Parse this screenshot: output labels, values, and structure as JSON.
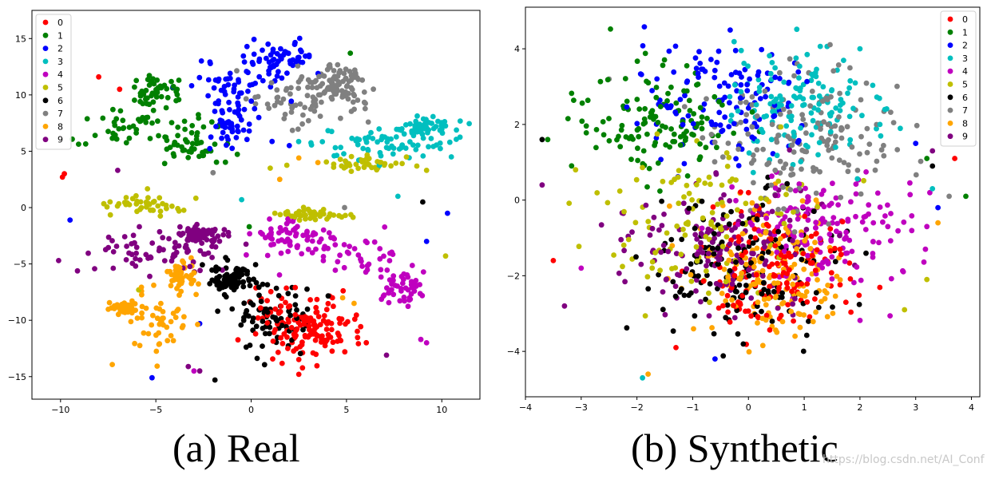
{
  "chart_data": [
    {
      "type": "scatter",
      "title": "",
      "caption": "(a) Real",
      "xlabel": "",
      "ylabel": "",
      "xlim": [
        -11.5,
        12.0
      ],
      "ylim": [
        -17.0,
        17.5
      ],
      "xticks": [
        -10,
        -5,
        0,
        5,
        10
      ],
      "yticks": [
        -15,
        -10,
        -5,
        0,
        5,
        10,
        15
      ],
      "legend": {
        "placement": "upper-left",
        "entries": [
          "0",
          "1",
          "2",
          "3",
          "4",
          "5",
          "6",
          "7",
          "8",
          "9"
        ]
      },
      "clusters": [
        {
          "label": "0",
          "n": 150,
          "centers": [
            [
              2.3,
              -9.8,
              1.5,
              1.8
            ],
            [
              3.5,
              -11.5,
              1.4,
              1.2
            ]
          ],
          "outliers": [
            [
              -9.8,
              3.0
            ],
            [
              -9.9,
              2.7
            ],
            [
              -8.0,
              11.6
            ],
            [
              -6.9,
              10.5
            ],
            [
              2.5,
              -14.8
            ]
          ]
        },
        {
          "label": "1",
          "n": 140,
          "centers": [
            [
              -6.5,
              7.3,
              1.8,
              1.2
            ],
            [
              -3.2,
              5.5,
              1.0,
              1.3
            ],
            [
              -5.0,
              10.2,
              0.8,
              0.8
            ]
          ],
          "outliers": [
            [
              5.2,
              13.7
            ],
            [
              -0.1,
              -1.7
            ],
            [
              -2.4,
              5.0
            ]
          ]
        },
        {
          "label": "2",
          "n": 150,
          "centers": [
            [
              -0.5,
              11.5,
              1.5,
              1.7
            ],
            [
              1.8,
              13.3,
              1.2,
              1.0
            ],
            [
              -0.9,
              7.3,
              0.8,
              1.3
            ]
          ],
          "outliers": [
            [
              -9.5,
              -1.1
            ],
            [
              -5.2,
              -15.1
            ],
            [
              2.0,
              5.5
            ],
            [
              10.3,
              -0.5
            ],
            [
              9.2,
              -3.0
            ],
            [
              -2.7,
              -10.3
            ]
          ]
        },
        {
          "label": "3",
          "n": 120,
          "centers": [
            [
              6.8,
              5.6,
              2.2,
              0.9
            ],
            [
              9.0,
              7.0,
              1.2,
              0.6
            ]
          ],
          "outliers": [
            [
              -0.5,
              0.7
            ],
            [
              7.7,
              1.0
            ],
            [
              10.5,
              4.5
            ]
          ]
        },
        {
          "label": "4",
          "n": 150,
          "centers": [
            [
              4.5,
              -4.0,
              2.6,
              1.2
            ],
            [
              2.0,
              -2.5,
              1.2,
              0.9
            ],
            [
              8.0,
              -7.0,
              0.8,
              1.1
            ]
          ],
          "outliers": [
            [
              8.9,
              -11.7
            ],
            [
              -3.0,
              -14.5
            ],
            [
              9.2,
              -12.0
            ]
          ]
        },
        {
          "label": "5",
          "n": 130,
          "centers": [
            [
              -5.5,
              0.2,
              1.6,
              0.6
            ],
            [
              3.5,
              -0.6,
              1.3,
              0.3
            ],
            [
              6.0,
              3.9,
              1.8,
              0.4
            ]
          ],
          "outliers": [
            [
              -5.9,
              -7.3
            ],
            [
              1.0,
              3.5
            ],
            [
              9.2,
              3.3
            ],
            [
              10.2,
              -4.3
            ]
          ]
        },
        {
          "label": "6",
          "n": 150,
          "centers": [
            [
              1.2,
              -10.0,
              1.3,
              2.0
            ],
            [
              -0.9,
              -6.4,
              0.8,
              1.0
            ]
          ],
          "outliers": [
            [
              9.0,
              0.5
            ],
            [
              -1.9,
              -15.3
            ]
          ]
        },
        {
          "label": "7",
          "n": 150,
          "centers": [
            [
              2.7,
              9.8,
              1.9,
              1.7
            ],
            [
              4.5,
              11.0,
              1.0,
              1.0
            ]
          ],
          "outliers": [
            [
              -2.0,
              3.1
            ],
            [
              4.9,
              0.0
            ]
          ]
        },
        {
          "label": "8",
          "n": 140,
          "centers": [
            [
              -4.8,
              -10.2,
              1.1,
              1.9
            ],
            [
              -6.6,
              -8.9,
              0.6,
              0.4
            ],
            [
              -3.6,
              -6.1,
              0.5,
              0.8
            ]
          ],
          "outliers": [
            [
              1.5,
              2.5
            ],
            [
              2.5,
              4.4
            ],
            [
              4.8,
              -8.0
            ],
            [
              5.4,
              -8.5
            ],
            [
              3.5,
              4.0
            ]
          ]
        },
        {
          "label": "9",
          "n": 140,
          "centers": [
            [
              -5.0,
              -3.9,
              2.2,
              1.0
            ],
            [
              -2.8,
              -2.4,
              0.8,
              0.5
            ]
          ],
          "outliers": [
            [
              -7.0,
              3.3
            ],
            [
              -10.1,
              -4.7
            ],
            [
              -2.7,
              -14.5
            ],
            [
              -3.3,
              -14.1
            ],
            [
              7.1,
              -13.1
            ]
          ]
        }
      ]
    },
    {
      "type": "scatter",
      "title": "",
      "caption": "(b) Synthetic",
      "xlabel": "",
      "ylabel": "",
      "xlim": [
        -4.0,
        4.15
      ],
      "ylim": [
        -5.2,
        5.1
      ],
      "xticks": [
        -4,
        -3,
        -2,
        -1,
        0,
        1,
        2,
        3,
        4
      ],
      "yticks": [
        -4,
        -2,
        0,
        2,
        4
      ],
      "legend": {
        "placement": "upper-right",
        "entries": [
          "0",
          "1",
          "2",
          "3",
          "4",
          "5",
          "6",
          "7",
          "8",
          "9"
        ]
      },
      "clusters": [
        {
          "label": "0",
          "n": 150,
          "centers": [
            [
              0.5,
              -1.9,
              0.85,
              1.0
            ]
          ],
          "outliers": [
            [
              3.7,
              1.1
            ],
            [
              -3.5,
              -1.6
            ],
            [
              -1.3,
              -3.9
            ]
          ]
        },
        {
          "label": "1",
          "n": 130,
          "centers": [
            [
              -1.6,
              2.1,
              0.9,
              0.95
            ]
          ],
          "outliers": [
            [
              -3.6,
              1.6
            ],
            [
              3.2,
              1.1
            ],
            [
              3.9,
              0.1
            ]
          ]
        },
        {
          "label": "2",
          "n": 130,
          "centers": [
            [
              -0.5,
              2.7,
              1.0,
              1.0
            ]
          ],
          "outliers": [
            [
              3.0,
              1.5
            ],
            [
              3.4,
              -0.2
            ],
            [
              -0.6,
              -4.2
            ]
          ]
        },
        {
          "label": "3",
          "n": 140,
          "centers": [
            [
              0.9,
              2.6,
              0.8,
              1.0
            ]
          ],
          "outliers": [
            [
              2.0,
              4.0
            ],
            [
              -1.9,
              -4.7
            ],
            [
              3.3,
              0.3
            ]
          ]
        },
        {
          "label": "4",
          "n": 160,
          "centers": [
            [
              1.4,
              -0.8,
              1.0,
              0.9
            ]
          ],
          "outliers": [
            [
              -3.0,
              -1.8
            ],
            [
              3.2,
              -0.7
            ]
          ]
        },
        {
          "label": "5",
          "n": 120,
          "centers": [
            [
              -0.7,
              -0.8,
              1.1,
              1.2
            ]
          ],
          "outliers": [
            [
              2.8,
              -2.9
            ],
            [
              3.2,
              -2.1
            ],
            [
              -3.1,
              0.8
            ]
          ]
        },
        {
          "label": "6",
          "n": 160,
          "centers": [
            [
              0.0,
              -1.8,
              1.0,
              1.1
            ]
          ],
          "outliers": [
            [
              -3.7,
              1.6
            ],
            [
              3.3,
              0.9
            ]
          ]
        },
        {
          "label": "7",
          "n": 160,
          "centers": [
            [
              1.0,
              1.7,
              1.0,
              1.1
            ]
          ],
          "outliers": [
            [
              -2.5,
              3.2
            ],
            [
              3.6,
              0.1
            ]
          ]
        },
        {
          "label": "8",
          "n": 170,
          "centers": [
            [
              0.4,
              -1.8,
              0.75,
              1.05
            ]
          ],
          "outliers": [
            [
              3.4,
              -0.6
            ],
            [
              -1.8,
              -4.6
            ]
          ]
        },
        {
          "label": "9",
          "n": 160,
          "centers": [
            [
              -0.6,
              -1.2,
              1.15,
              1.0
            ]
          ],
          "outliers": [
            [
              -3.7,
              0.4
            ],
            [
              -3.3,
              -2.8
            ],
            [
              3.3,
              1.3
            ]
          ]
        }
      ]
    }
  ],
  "colors": {
    "0": "#ff0000",
    "1": "#008000",
    "2": "#0000ff",
    "3": "#00bfbf",
    "4": "#bf00bf",
    "5": "#bfbf00",
    "6": "#000000",
    "7": "#808080",
    "8": "#ffa500",
    "9": "#800080"
  },
  "watermark": "https://blog.csdn.net/AI_Conf"
}
